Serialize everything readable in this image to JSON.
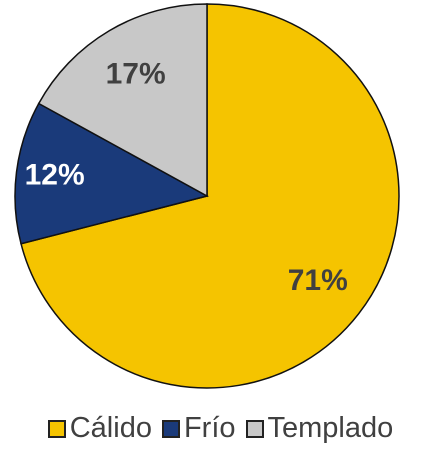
{
  "chart_data": {
    "type": "pie",
    "categories": [
      "Cálido",
      "Frío",
      "Templado"
    ],
    "values": [
      71,
      12,
      17
    ],
    "value_labels": [
      "71%",
      "12%",
      "17%"
    ],
    "colors": [
      "#f5c400",
      "#1a3a7a",
      "#c8c8c8"
    ],
    "legend": "bottom"
  }
}
